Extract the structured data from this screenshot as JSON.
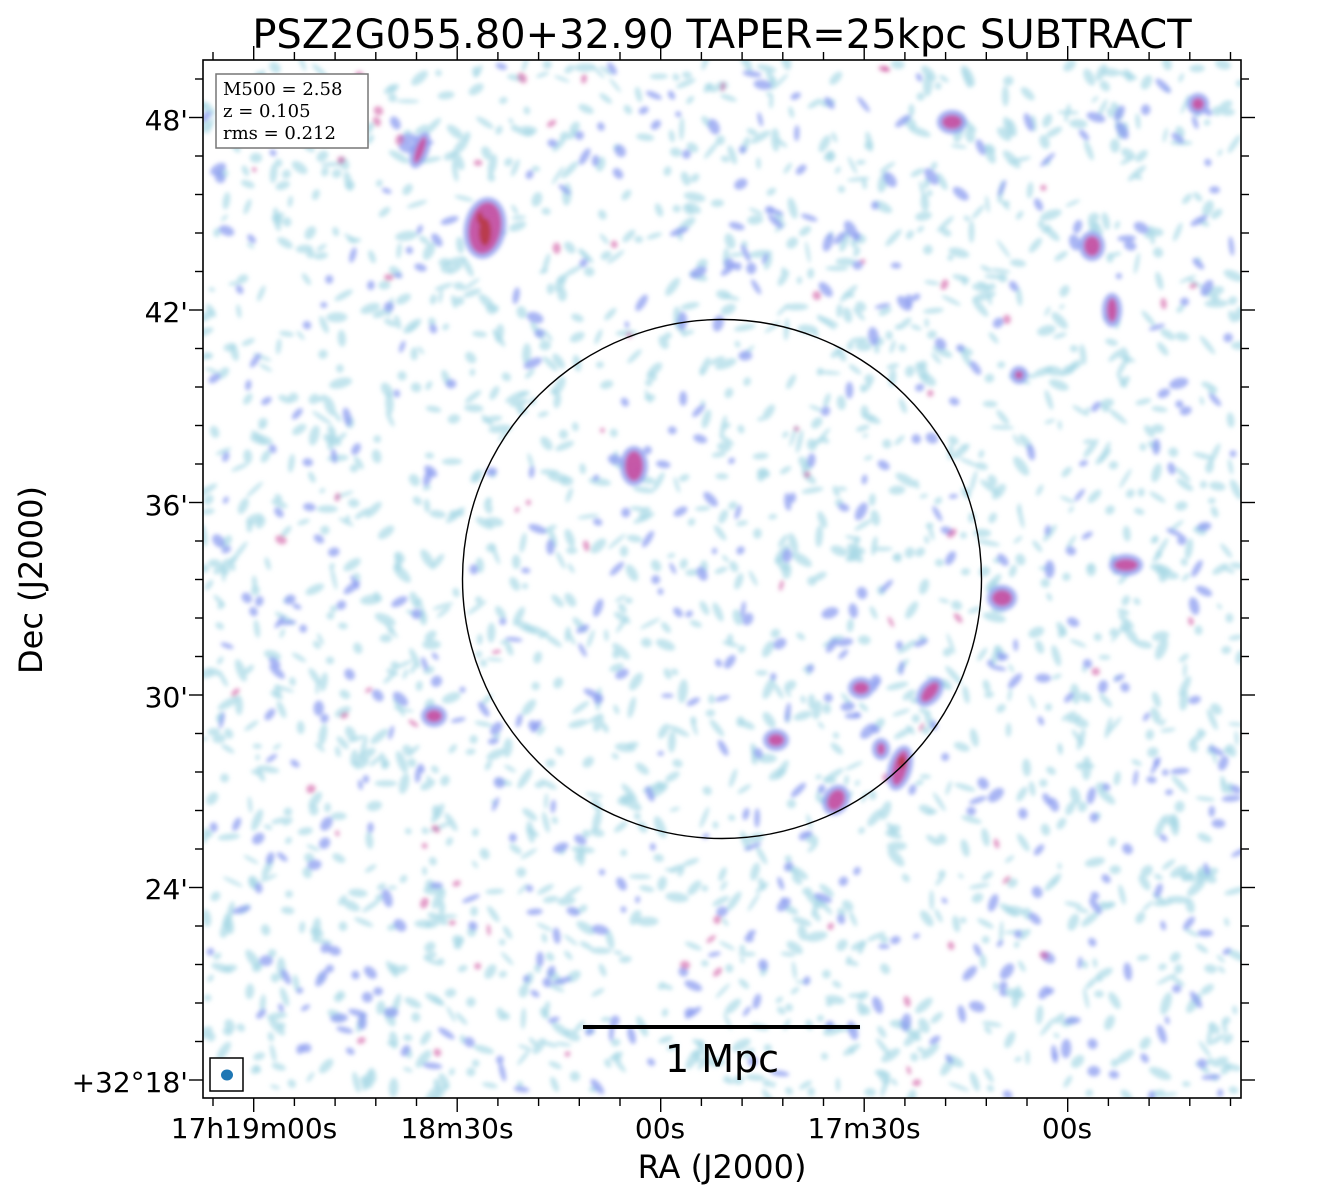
{
  "title": "PSZ2G055.80+32.90 TAPER=25kpc SUBTRACT",
  "info_box": {
    "lines": [
      "M500 = 2.58",
      "z = 0.105",
      "rms = 0.212"
    ]
  },
  "axes": {
    "xlabel": "RA (J2000)",
    "ylabel": "Dec (J2000)",
    "x_ticks": [
      "17h19m00s",
      "18m30s",
      "00s",
      "17m30s",
      "00s"
    ],
    "y_ticks": [
      "48'",
      "42'",
      "36'",
      "30'",
      "24'",
      "+32°18'"
    ]
  },
  "scale_bar": {
    "label": "1 Mpc"
  },
  "colors": {
    "noise_faint": "#a8d8e6",
    "noise_mid": "#8c9cf0",
    "emission_strong": "#cc4a9a",
    "emission_peak": "#b5332f",
    "beam": "#1f77b4"
  }
}
